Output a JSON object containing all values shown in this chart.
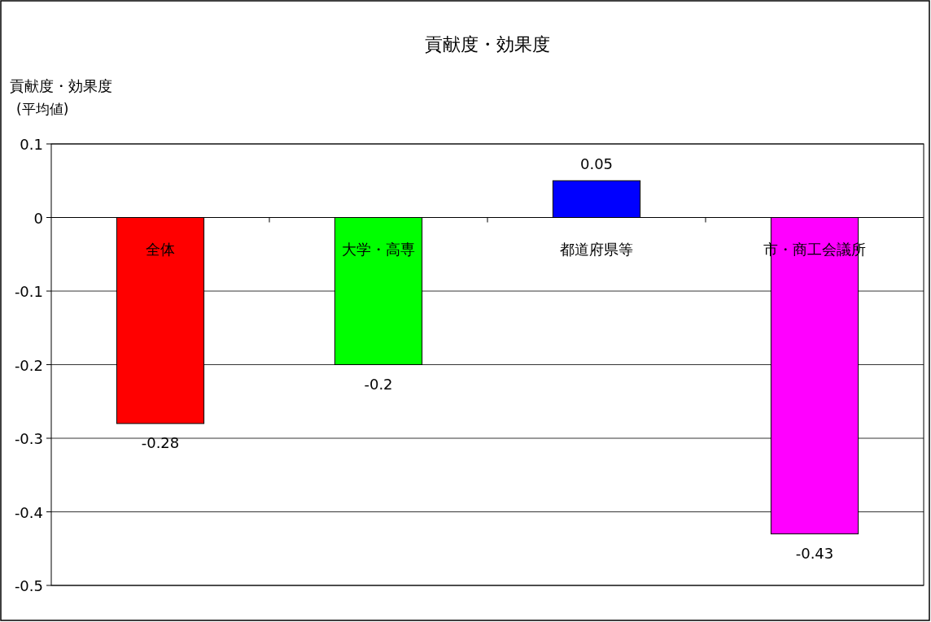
{
  "chart_data": {
    "type": "bar",
    "title": "貢献度・効果度",
    "ylabel": "貢献度・効果度\n(平均値)",
    "categories": [
      "全体",
      "大学・高専",
      "都道府県等",
      "市・商工会議所"
    ],
    "values": [
      -0.28,
      -0.2,
      0.05,
      -0.43
    ],
    "colors": [
      "#ff0000",
      "#00ff00",
      "#0000ff",
      "#ff00ff"
    ],
    "ylim": [
      -0.5,
      0.1
    ],
    "yticks": [
      0.1,
      0,
      -0.1,
      -0.2,
      -0.3,
      -0.4,
      -0.5
    ],
    "grid": "y",
    "data_labels": true
  }
}
